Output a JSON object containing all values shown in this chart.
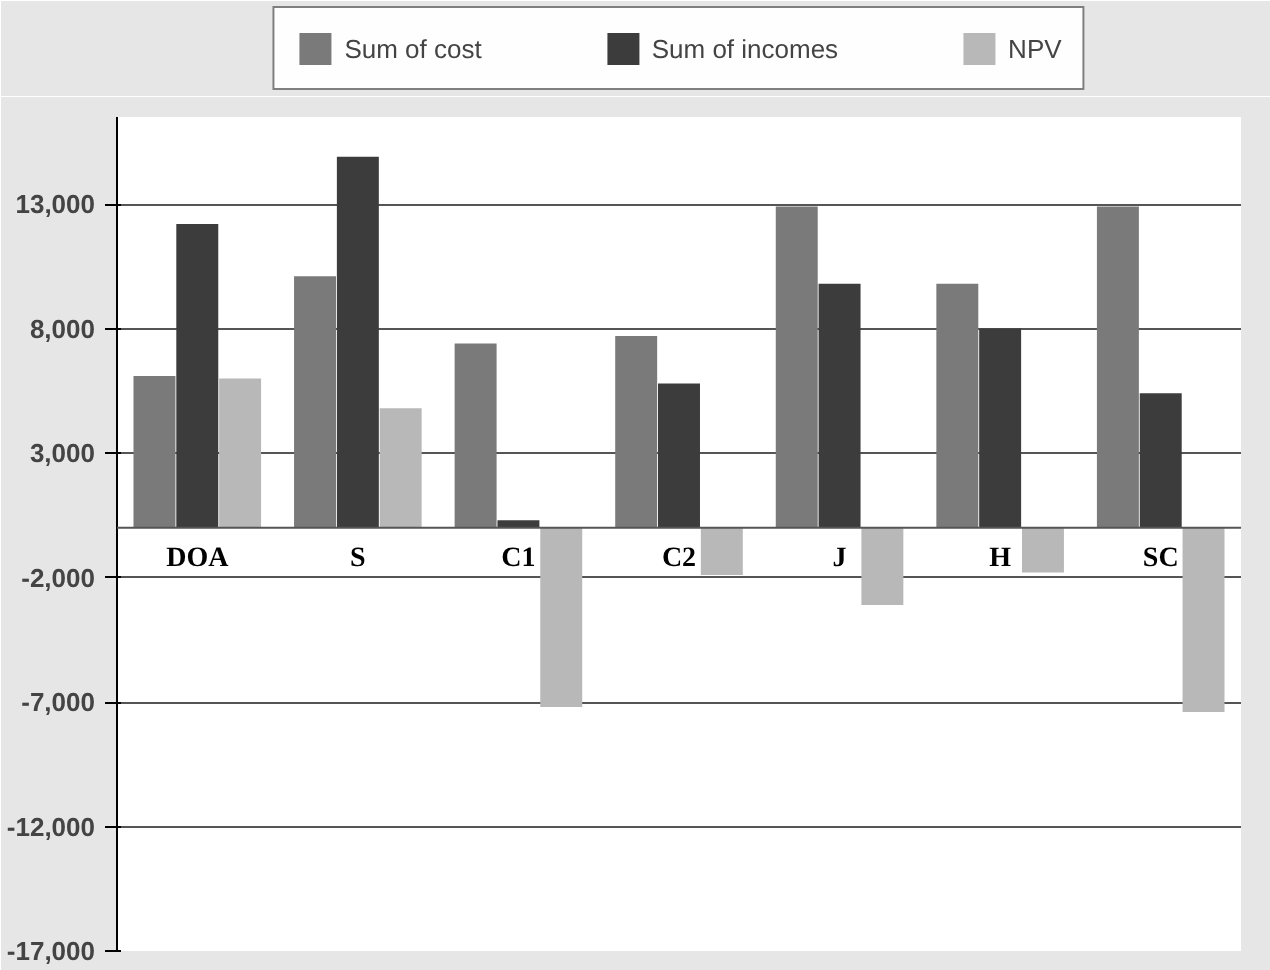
{
  "chart_data": {
    "type": "bar",
    "categories": [
      "DOA",
      "S",
      "C1",
      "C2",
      "J",
      "H",
      "SC"
    ],
    "series": [
      {
        "name": "Sum of cost",
        "color": "#7a7a7a",
        "values": [
          6100,
          10100,
          7400,
          7700,
          12900,
          9800,
          12900
        ]
      },
      {
        "name": "Sum of incomes",
        "color": "#3c3c3c",
        "values": [
          12200,
          14900,
          300,
          5800,
          9800,
          8000,
          5400
        ]
      },
      {
        "name": "NPV",
        "color": "#b8b8b8",
        "values": [
          6000,
          4800,
          -7200,
          -1900,
          -3100,
          -1800,
          -7400
        ]
      }
    ],
    "ylim": [
      -17000,
      16500
    ],
    "yticks": [
      {
        "value": -17000,
        "label": "-17,000"
      },
      {
        "value": -12000,
        "label": "-12,000"
      },
      {
        "value": -7000,
        "label": "-7,000"
      },
      {
        "value": -2000,
        "label": "-2,000"
      },
      {
        "value": 3000,
        "label": "3,000"
      },
      {
        "value": 8000,
        "label": "8,000"
      },
      {
        "value": 13000,
        "label": "13,000"
      }
    ],
    "grid": "y",
    "legend": "top"
  }
}
